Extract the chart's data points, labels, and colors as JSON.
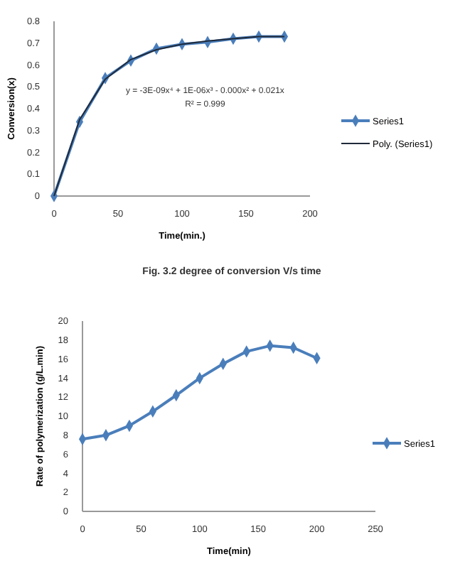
{
  "chart_data": [
    {
      "type": "line",
      "xlabel": "Time(min.)",
      "ylabel": "Conversion(x)",
      "xlim": [
        0,
        200
      ],
      "xticks": [
        0,
        50,
        100,
        150,
        200
      ],
      "ylim": [
        0,
        0.8
      ],
      "yticks": [
        0,
        0.1,
        0.2,
        0.3,
        0.4,
        0.5,
        0.6,
        0.7,
        0.8
      ],
      "marker": "diamond",
      "grid": false,
      "legend": "right",
      "x": [
        0,
        20,
        40,
        60,
        80,
        100,
        120,
        140,
        160,
        180
      ],
      "series": [
        {
          "name": "Series1",
          "color": "#4a7ebb",
          "values": [
            0,
            0.34,
            0.54,
            0.62,
            0.675,
            0.695,
            0.705,
            0.72,
            0.73,
            0.73
          ]
        },
        {
          "name": "Poly. (Series1)",
          "color": "#1f2a3a",
          "marker": "none",
          "values": [
            0,
            0.35,
            0.535,
            0.625,
            0.67,
            0.695,
            0.71,
            0.72,
            0.73,
            0.73
          ]
        }
      ],
      "annotations": [
        "y = -3E-09x⁴ + 1E-06x³ - 0.000x² + 0.021x",
        "R² = 0.999",
        "Fig. 3.2 degree of conversion V/s time"
      ]
    },
    {
      "type": "line",
      "xlabel": "Time(min)",
      "ylabel": "Rate of polymerization (g/L.min)",
      "xlim": [
        0,
        250
      ],
      "xticks": [
        0,
        50,
        100,
        150,
        200,
        250
      ],
      "ylim": [
        0,
        20
      ],
      "yticks": [
        0,
        2,
        4,
        6,
        8,
        10,
        12,
        14,
        16,
        18,
        20
      ],
      "marker": "diamond",
      "grid": false,
      "legend": "right",
      "x": [
        0,
        20,
        40,
        60,
        80,
        100,
        120,
        140,
        160,
        180,
        200
      ],
      "series": [
        {
          "name": "Series1",
          "color": "#4a7ebb",
          "values": [
            7.6,
            8.0,
            9.0,
            10.5,
            12.2,
            14.0,
            15.5,
            16.8,
            17.4,
            17.2,
            16.1
          ]
        }
      ]
    }
  ]
}
